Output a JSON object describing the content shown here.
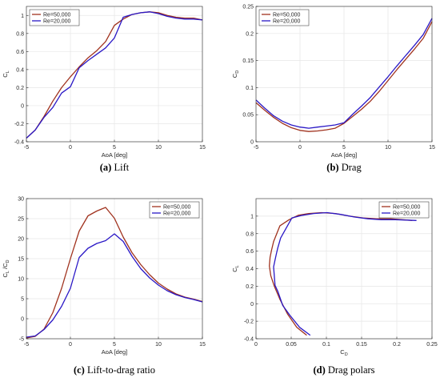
{
  "colors": {
    "Re=50,000": "#a0321e",
    "Re=20,000": "#2a18c6",
    "grid": "#e6e6e6",
    "axis": "#262626"
  },
  "chart_data": [
    {
      "id": "a",
      "type": "line",
      "caption_label": "(a)",
      "caption_text": "Lift",
      "xlabel": "AoA [deg]",
      "ylabel": "C",
      "ylabel_sub": "L",
      "xlim": [
        -5,
        15
      ],
      "ylim": [
        -0.4,
        1.1
      ],
      "xticks": [
        -5,
        0,
        5,
        10,
        15
      ],
      "yticks": [
        -0.4,
        -0.2,
        0,
        0.2,
        0.4,
        0.6,
        0.8,
        1
      ],
      "grid": true,
      "legend": "top-left",
      "series": [
        {
          "name": "Re=50,000",
          "x": [
            -5,
            -4,
            -3,
            -2,
            -1,
            0,
            1,
            2,
            3,
            4,
            5,
            6,
            7,
            8,
            9,
            10,
            11,
            12,
            13,
            14,
            15
          ],
          "y": [
            -0.36,
            -0.27,
            -0.12,
            0.05,
            0.2,
            0.32,
            0.43,
            0.53,
            0.61,
            0.71,
            0.89,
            0.96,
            1.01,
            1.03,
            1.04,
            1.03,
            1.0,
            0.98,
            0.97,
            0.97,
            0.95
          ]
        },
        {
          "name": "Re=20,000",
          "x": [
            -5,
            -4,
            -3,
            -2,
            -1,
            0,
            1,
            2,
            3,
            4,
            5,
            6,
            7,
            8,
            9,
            10,
            11,
            12,
            13,
            14,
            15
          ],
          "y": [
            -0.36,
            -0.27,
            -0.13,
            -0.02,
            0.14,
            0.21,
            0.42,
            0.5,
            0.57,
            0.64,
            0.75,
            0.98,
            1.01,
            1.03,
            1.04,
            1.02,
            0.99,
            0.97,
            0.96,
            0.96,
            0.95
          ]
        }
      ]
    },
    {
      "id": "b",
      "type": "line",
      "caption_label": "(b)",
      "caption_text": "Drag",
      "xlabel": "AoA [deg]",
      "ylabel": "C",
      "ylabel_sub": "D",
      "xlim": [
        -5,
        15
      ],
      "ylim": [
        0,
        0.25
      ],
      "xticks": [
        -5,
        0,
        5,
        10,
        15
      ],
      "yticks": [
        0,
        0.05,
        0.1,
        0.15,
        0.2,
        0.25
      ],
      "grid": true,
      "legend": "top-left",
      "series": [
        {
          "name": "Re=50,000",
          "x": [
            -5,
            -4,
            -3,
            -2,
            -1,
            0,
            1,
            2,
            3,
            4,
            5,
            6,
            7,
            8,
            9,
            10,
            11,
            12,
            13,
            14,
            15
          ],
          "y": [
            0.072,
            0.058,
            0.045,
            0.034,
            0.026,
            0.021,
            0.019,
            0.02,
            0.022,
            0.025,
            0.034,
            0.047,
            0.06,
            0.075,
            0.093,
            0.113,
            0.133,
            0.152,
            0.171,
            0.191,
            0.222
          ]
        },
        {
          "name": "Re=20,000",
          "x": [
            -5,
            -4,
            -3,
            -2,
            -1,
            0,
            1,
            2,
            3,
            4,
            5,
            6,
            7,
            8,
            9,
            10,
            11,
            12,
            13,
            14,
            15
          ],
          "y": [
            0.077,
            0.062,
            0.048,
            0.038,
            0.031,
            0.027,
            0.025,
            0.027,
            0.029,
            0.031,
            0.035,
            0.051,
            0.066,
            0.082,
            0.101,
            0.12,
            0.14,
            0.159,
            0.178,
            0.198,
            0.228
          ]
        }
      ]
    },
    {
      "id": "c",
      "type": "line",
      "caption_label": "(c)",
      "caption_text": "Lift-to-drag ratio",
      "xlabel": "AoA [deg]",
      "ylabel": "C /C",
      "ylabel_sub1": "L",
      "ylabel_sub2": "D",
      "xlim": [
        -5,
        15
      ],
      "ylim": [
        -5,
        30
      ],
      "xticks": [
        -5,
        0,
        5,
        10,
        15
      ],
      "yticks": [
        -5,
        0,
        5,
        10,
        15,
        20,
        25,
        30
      ],
      "grid": true,
      "legend": "top-right",
      "series": [
        {
          "name": "Re=50,000",
          "x": [
            -5,
            -4,
            -3,
            -2,
            -1,
            0,
            1,
            2,
            3,
            4,
            5,
            6,
            7,
            8,
            9,
            10,
            11,
            12,
            13,
            14,
            15
          ],
          "y": [
            -4.8,
            -4.4,
            -2.6,
            1.5,
            7.6,
            15.0,
            21.9,
            25.7,
            26.9,
            27.8,
            25.1,
            20.4,
            16.5,
            13.5,
            11.0,
            8.9,
            7.4,
            6.2,
            5.4,
            4.9,
            4.3
          ]
        },
        {
          "name": "Re=20,000",
          "x": [
            -5,
            -4,
            -3,
            -2,
            -1,
            0,
            1,
            2,
            3,
            4,
            5,
            6,
            7,
            8,
            9,
            10,
            11,
            12,
            13,
            14,
            15
          ],
          "y": [
            -4.6,
            -4.3,
            -2.7,
            -0.3,
            3.1,
            7.6,
            15.3,
            17.6,
            18.8,
            19.5,
            21.2,
            19.3,
            15.6,
            12.5,
            10.2,
            8.4,
            7.0,
            6.0,
            5.3,
            4.8,
            4.2
          ]
        }
      ]
    },
    {
      "id": "d",
      "type": "line",
      "caption_label": "(d)",
      "caption_text": "Drag polars",
      "xlabel": "C",
      "xlabel_sub": "D",
      "ylabel": "C",
      "ylabel_sub": "L",
      "xlim": [
        0,
        0.25
      ],
      "ylim": [
        -0.4,
        1.2
      ],
      "xticks": [
        0,
        0.05,
        0.1,
        0.15,
        0.2,
        0.25
      ],
      "yticks": [
        -0.4,
        -0.2,
        0,
        0.2,
        0.4,
        0.6,
        0.8,
        1
      ],
      "grid": true,
      "legend": "top-right",
      "series": [
        {
          "name": "Re=50,000",
          "x": [
            0.072,
            0.058,
            0.045,
            0.034,
            0.026,
            0.021,
            0.019,
            0.02,
            0.022,
            0.025,
            0.034,
            0.047,
            0.06,
            0.075,
            0.093,
            0.113,
            0.133,
            0.152,
            0.171,
            0.191,
            0.222
          ],
          "y": [
            -0.36,
            -0.27,
            -0.12,
            0.05,
            0.2,
            0.32,
            0.43,
            0.53,
            0.61,
            0.71,
            0.89,
            0.96,
            1.01,
            1.03,
            1.04,
            1.03,
            1.0,
            0.98,
            0.97,
            0.97,
            0.95
          ]
        },
        {
          "name": "Re=20,000",
          "x": [
            0.077,
            0.062,
            0.048,
            0.038,
            0.031,
            0.027,
            0.025,
            0.027,
            0.029,
            0.031,
            0.035,
            0.051,
            0.066,
            0.082,
            0.101,
            0.12,
            0.14,
            0.159,
            0.178,
            0.198,
            0.228
          ],
          "y": [
            -0.36,
            -0.27,
            -0.13,
            -0.02,
            0.14,
            0.21,
            0.42,
            0.5,
            0.57,
            0.64,
            0.75,
            0.98,
            1.01,
            1.03,
            1.04,
            1.02,
            0.99,
            0.97,
            0.96,
            0.96,
            0.95
          ]
        }
      ]
    }
  ]
}
